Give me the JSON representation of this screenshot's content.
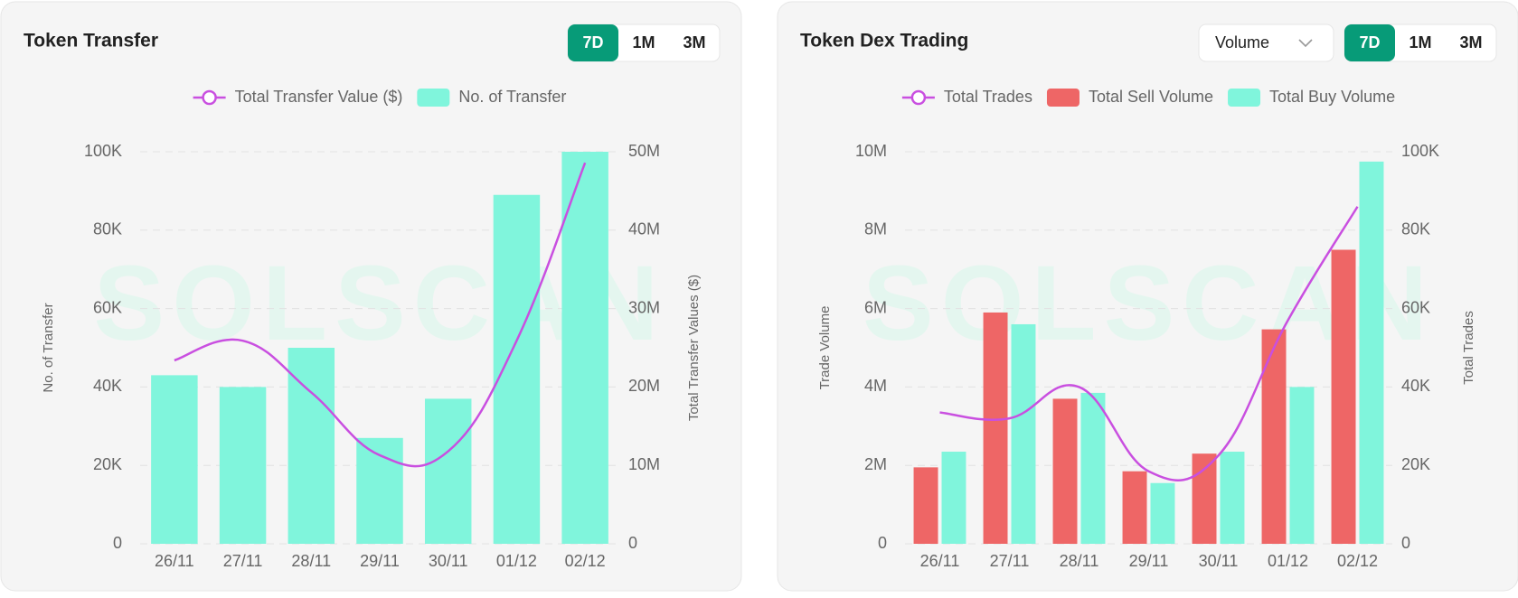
{
  "chart_data": [
    {
      "type": "bar",
      "title": "Token Transfer",
      "buttons": [
        "7D",
        "1M",
        "3M"
      ],
      "selected": 0,
      "watermark": "SOLSCAN",
      "categories": [
        "26/11",
        "27/11",
        "28/11",
        "29/11",
        "30/11",
        "01/12",
        "02/12"
      ],
      "series": [
        {
          "name": "Total Transfer Value ($)",
          "color": "#c94fe0",
          "axis": "y2",
          "values": [
            23400000,
            25900000,
            19300000,
            11300000,
            11800000,
            25900000,
            48600000
          ]
        },
        {
          "name": "No. of Transfer",
          "color": "#80f5dc",
          "values": [
            43000,
            40000,
            50000,
            27000,
            37000,
            89000,
            100000
          ]
        }
      ],
      "ylabel": "No. of Transfer",
      "y2label": "Total Transfer Values ($)",
      "ylim": [
        0,
        100000
      ],
      "yticks": [
        0,
        {
          "value": 20000,
          "label": "20K"
        },
        {
          "value": 40000,
          "label": "40K"
        },
        {
          "value": 60000,
          "label": "60K"
        },
        {
          "value": 80000,
          "label": "80K"
        },
        {
          "value": 100000,
          "label": "100K"
        }
      ],
      "y2lim": [
        0,
        50000000
      ],
      "y2ticks": [
        0,
        {
          "value": 10000000,
          "label": "10M"
        },
        {
          "value": 20000000,
          "label": "20M"
        },
        {
          "value": 30000000,
          "label": "30M"
        },
        {
          "value": 40000000,
          "label": "40M"
        },
        {
          "value": 50000000,
          "label": "50M"
        }
      ],
      "grid": true
    },
    {
      "type": "bar",
      "title": "Token Dex Trading",
      "dropdown": "Volume",
      "buttons": [
        "7D",
        "1M",
        "3M"
      ],
      "selected": 0,
      "watermark": "SOLSCAN",
      "categories": [
        "26/11",
        "27/11",
        "28/11",
        "29/11",
        "30/11",
        "01/12",
        "02/12"
      ],
      "series": [
        {
          "name": "Total Trades",
          "color": "#c94fe0",
          "axis": "y2",
          "values": [
            33500,
            32000,
            40000,
            18500,
            22500,
            57000,
            86000
          ]
        },
        {
          "name": "Total Sell Volume",
          "color": "#ee6666",
          "values": [
            1950000,
            5900000,
            3700000,
            1850000,
            2300000,
            5470000,
            7500000
          ]
        },
        {
          "name": "Total Buy Volume",
          "color": "#80f5dc",
          "values": [
            2350000,
            5600000,
            3850000,
            1550000,
            2350000,
            4000000,
            9750000
          ]
        }
      ],
      "ylabel": "Trade Volume",
      "y2label": "Total Trades",
      "ylim": [
        0,
        10000000
      ],
      "yticks": [
        0,
        {
          "value": 2000000,
          "label": "2M"
        },
        {
          "value": 4000000,
          "label": "4M"
        },
        {
          "value": 6000000,
          "label": "6M"
        },
        {
          "value": 8000000,
          "label": "8M"
        },
        {
          "value": 10000000,
          "label": "10M"
        }
      ],
      "y2lim": [
        0,
        100000
      ],
      "y2ticks": [
        0,
        {
          "value": 20000,
          "label": "20K"
        },
        {
          "value": 40000,
          "label": "40K"
        },
        {
          "value": 60000,
          "label": "60K"
        },
        {
          "value": 80000,
          "label": "80K"
        },
        {
          "value": 100000,
          "label": "100K"
        }
      ],
      "grid": true
    }
  ]
}
